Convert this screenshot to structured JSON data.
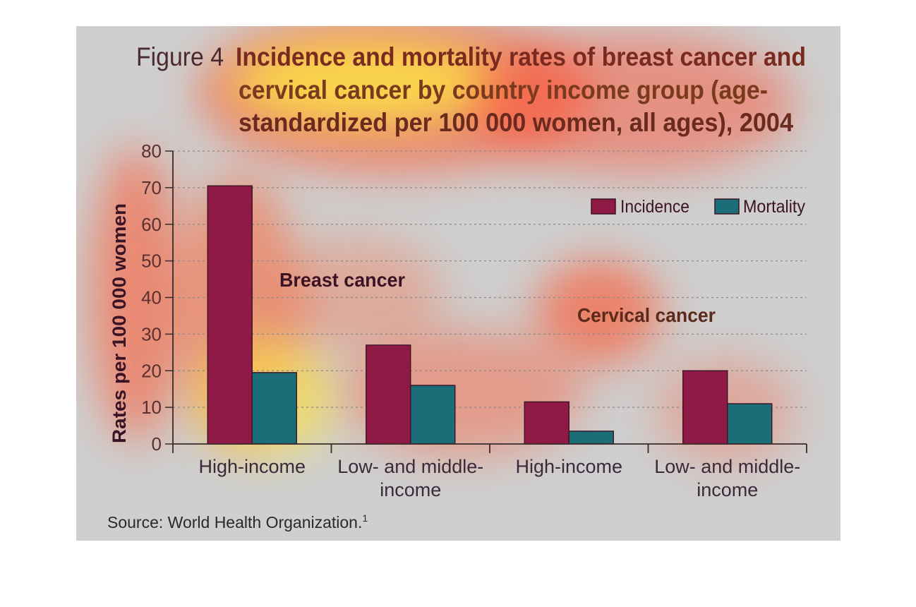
{
  "figure": {
    "label": "Figure 4",
    "title_lines": [
      "Incidence and mortality rates of breast cancer and",
      "cervical cancer by country income group (age-",
      "standardized per 100 000 women, all ages), 2004"
    ],
    "source": "Source: World Health Organization.",
    "source_sup": "1"
  },
  "chart_data": {
    "type": "bar",
    "title": "Incidence and mortality rates of breast cancer and cervical cancer by country income group (age-standardized per 100 000 women, all ages), 2004",
    "xlabel": "",
    "ylabel": "Rates per 100 000 women",
    "ylim": [
      0,
      80
    ],
    "yticks": [
      "0",
      "10",
      "20",
      "30",
      "40",
      "50",
      "60",
      "70",
      "80"
    ],
    "grid": true,
    "legend_position": "top-right",
    "categories": [
      [
        "High-income"
      ],
      [
        "Low- and middle-",
        "income"
      ],
      [
        "High-income"
      ],
      [
        "Low- and middle-",
        "income"
      ]
    ],
    "groups": [
      {
        "label": "Breast cancer",
        "category_indices": [
          0,
          1
        ]
      },
      {
        "label": "Cervical cancer",
        "category_indices": [
          2,
          3
        ]
      }
    ],
    "series": [
      {
        "name": "Incidence",
        "color": "#8e1a45",
        "values": [
          70.5,
          27,
          11.5,
          20
        ]
      },
      {
        "name": "Mortality",
        "color": "#1b6e78",
        "values": [
          19.5,
          16,
          3.5,
          11
        ]
      }
    ]
  },
  "colors": {
    "background": "#cfcfcf",
    "grid": "#8a8a8a",
    "text_dark": "#3a1424",
    "axis": "#3a2a2a"
  }
}
